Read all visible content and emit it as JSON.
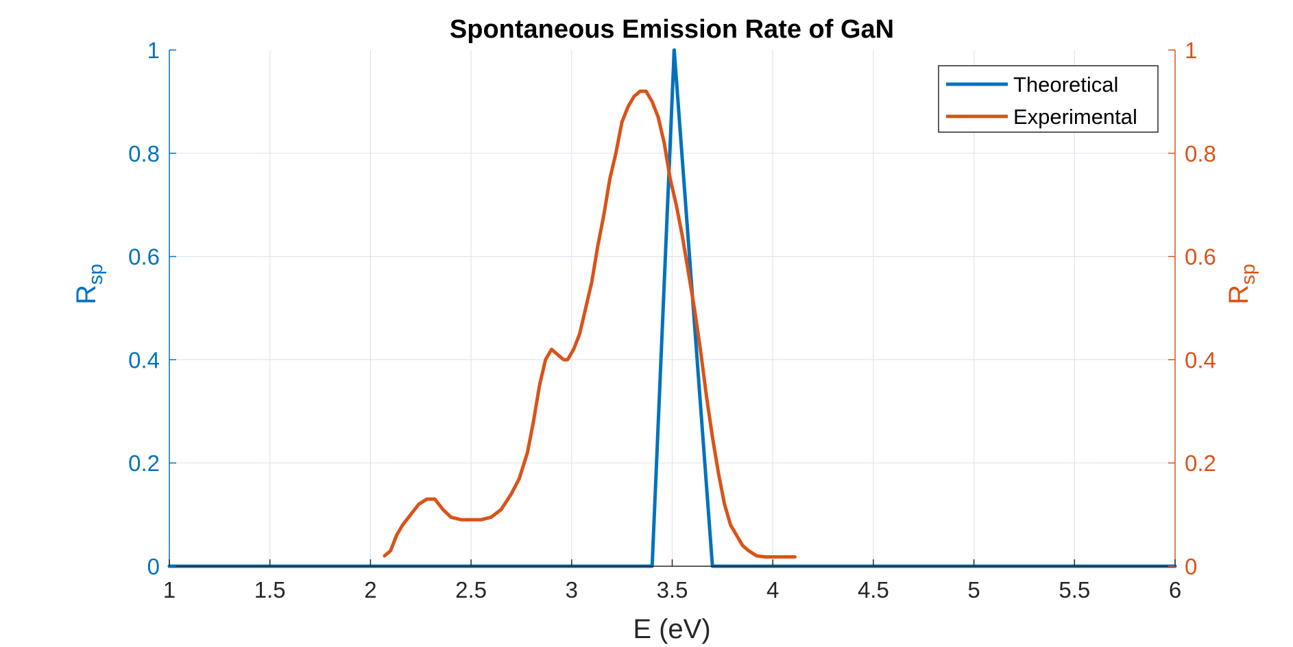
{
  "chart_data": {
    "type": "line",
    "title": "Spontaneous Emission Rate of GaN",
    "xlabel": "E (eV)",
    "ylabel_left": {
      "main": "R",
      "sub": "sp"
    },
    "ylabel_right": {
      "main": "R",
      "sub": "sp"
    },
    "xlim": [
      1,
      6
    ],
    "ylim_left": [
      0,
      1
    ],
    "ylim_right": [
      0,
      1
    ],
    "x_ticks": [
      1,
      1.5,
      2,
      2.5,
      3,
      3.5,
      4,
      4.5,
      5,
      5.5,
      6
    ],
    "x_tick_labels": [
      "1",
      "1.5",
      "2",
      "2.5",
      "3",
      "3.5",
      "4",
      "4.5",
      "5",
      "5.5",
      "6"
    ],
    "y_ticks": [
      0,
      0.2,
      0.4,
      0.6,
      0.8,
      1
    ],
    "y_tick_labels": [
      "0",
      "0.2",
      "0.4",
      "0.6",
      "0.8",
      "1"
    ],
    "grid": true,
    "legend_position": "top-right",
    "colors": {
      "theoretical": "#0072BD",
      "experimental": "#D95319",
      "axis": "#262626",
      "grid": "#dfe6ee"
    },
    "series": [
      {
        "name": "Theoretical",
        "axis": "left",
        "x": [
          1,
          3.4,
          3.51,
          3.7,
          6
        ],
        "y": [
          0,
          0,
          1.0,
          0,
          0
        ]
      },
      {
        "name": "Experimental",
        "axis": "right",
        "x": [
          2.07,
          2.1,
          2.13,
          2.16,
          2.2,
          2.24,
          2.28,
          2.32,
          2.36,
          2.4,
          2.45,
          2.5,
          2.55,
          2.6,
          2.65,
          2.7,
          2.74,
          2.78,
          2.81,
          2.84,
          2.87,
          2.9,
          2.93,
          2.96,
          2.98,
          3.01,
          3.04,
          3.07,
          3.1,
          3.13,
          3.16,
          3.19,
          3.22,
          3.25,
          3.28,
          3.31,
          3.34,
          3.37,
          3.4,
          3.43,
          3.46,
          3.49,
          3.52,
          3.55,
          3.58,
          3.61,
          3.64,
          3.67,
          3.7,
          3.73,
          3.76,
          3.79,
          3.82,
          3.85,
          3.88,
          3.92,
          3.96,
          4.0,
          4.05,
          4.11
        ],
        "y": [
          0.02,
          0.03,
          0.06,
          0.08,
          0.1,
          0.12,
          0.13,
          0.13,
          0.11,
          0.095,
          0.09,
          0.09,
          0.09,
          0.095,
          0.11,
          0.14,
          0.17,
          0.22,
          0.28,
          0.35,
          0.4,
          0.42,
          0.41,
          0.4,
          0.4,
          0.42,
          0.45,
          0.5,
          0.55,
          0.62,
          0.68,
          0.75,
          0.8,
          0.86,
          0.89,
          0.91,
          0.92,
          0.92,
          0.9,
          0.87,
          0.82,
          0.75,
          0.7,
          0.64,
          0.57,
          0.5,
          0.42,
          0.33,
          0.25,
          0.18,
          0.12,
          0.08,
          0.06,
          0.04,
          0.03,
          0.02,
          0.018,
          0.018,
          0.018,
          0.018
        ]
      }
    ]
  }
}
